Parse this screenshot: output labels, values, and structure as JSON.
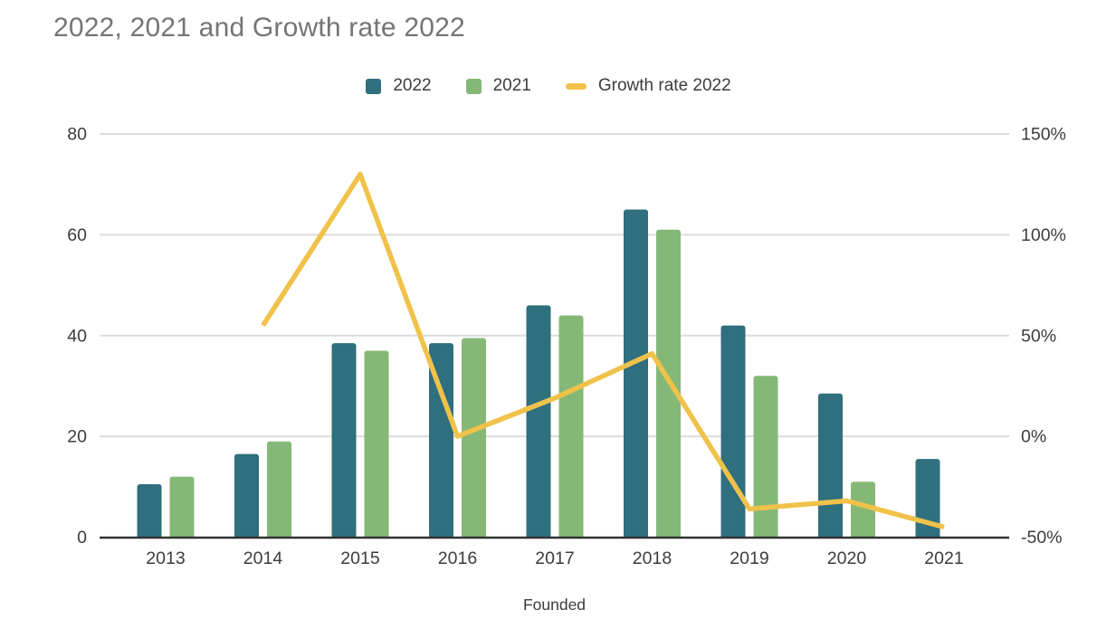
{
  "title": "2022, 2021 and Growth rate 2022",
  "chart_data": {
    "type": "combo",
    "title": "2022, 2021 and Growth rate 2022",
    "categories": [
      "2013",
      "2014",
      "2015",
      "2016",
      "2017",
      "2018",
      "2019",
      "2020",
      "2021"
    ],
    "series": [
      {
        "name": "2022",
        "type": "bar",
        "axis": "left",
        "color": "#2f6f7e",
        "values": [
          10.5,
          16.5,
          38.5,
          38.5,
          46,
          65,
          42,
          28.5,
          15.5
        ]
      },
      {
        "name": "2021",
        "type": "bar",
        "axis": "left",
        "color": "#85b877",
        "values": [
          12,
          19,
          37,
          39.5,
          44,
          61,
          32,
          11,
          null
        ]
      },
      {
        "name": "Growth rate 2022",
        "type": "line",
        "axis": "right",
        "color": "#f0c24a",
        "unit": "%",
        "values": [
          null,
          55,
          130,
          0,
          19,
          41,
          -36,
          -32,
          -45
        ]
      }
    ],
    "xlabel": "Founded",
    "left_axis": {
      "range": [
        0,
        80
      ],
      "ticks": [
        0,
        20,
        40,
        60,
        80
      ]
    },
    "right_axis": {
      "range": [
        -50,
        150
      ],
      "ticks": [
        {
          "value": -50,
          "label": "-50%"
        },
        {
          "value": 0,
          "label": "0%"
        },
        {
          "value": 50,
          "label": "50%"
        },
        {
          "value": 100,
          "label": "100%"
        },
        {
          "value": 150,
          "label": "150%"
        }
      ]
    },
    "grid": true,
    "legend_position": "top"
  },
  "colors": {
    "title": "#757575",
    "tick_label": "#3c3c3c",
    "gridline": "#dadce0",
    "axis_line": "#333333",
    "background": "#ffffff"
  }
}
